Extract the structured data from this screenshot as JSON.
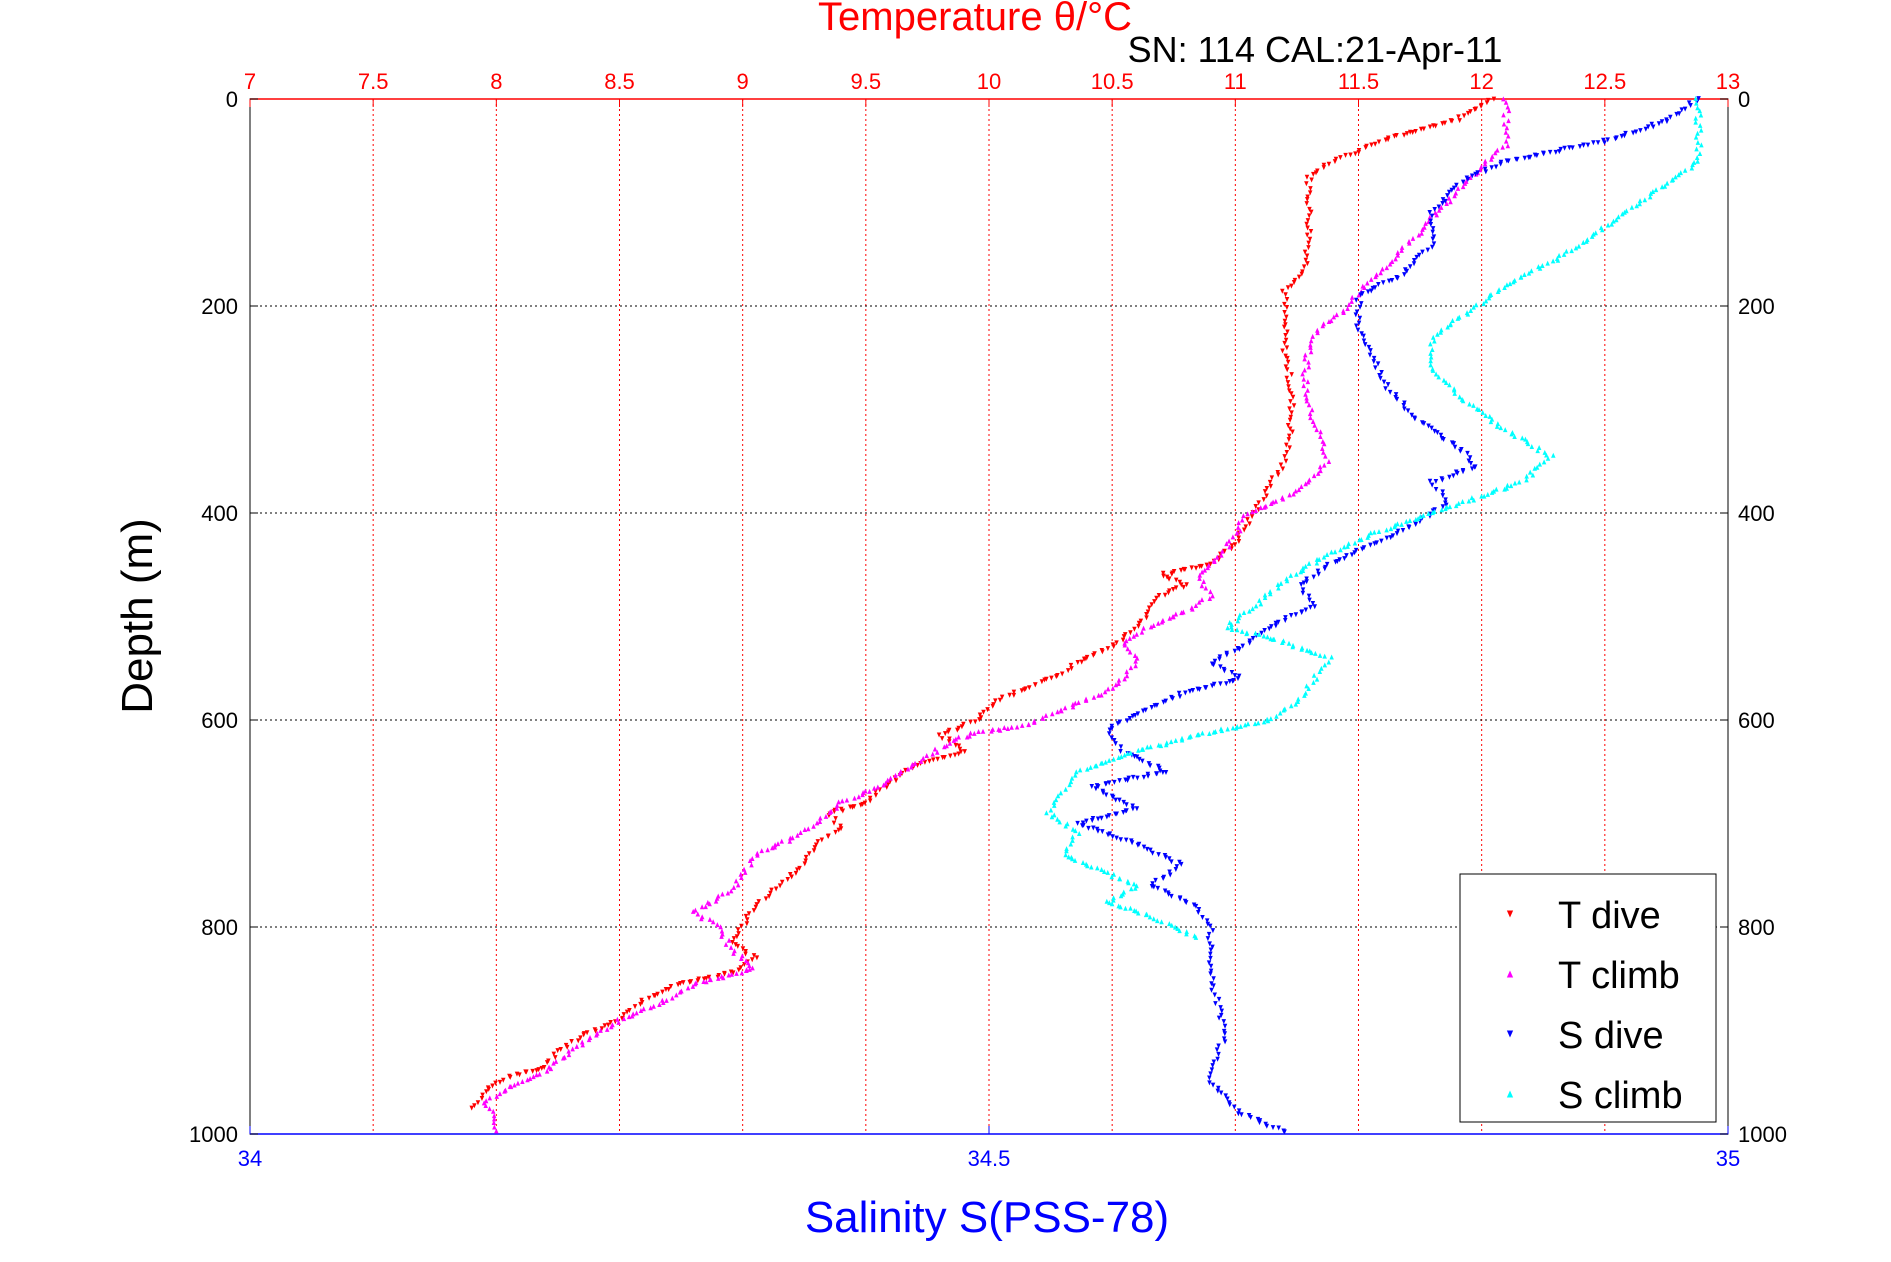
{
  "chart_data": {
    "type": "scatter",
    "title": "Temperature θ/°C",
    "subtitle": "SN: 114  CAL:21-Apr-11",
    "ylabel": "Depth (m)",
    "xlabel": "Salinity S(PSS-78)",
    "ylim": [
      0,
      1000
    ],
    "y_reversed": true,
    "y_ticks": [
      0,
      200,
      400,
      600,
      800,
      1000
    ],
    "y_tick_labels": [
      "0",
      "200",
      "400",
      "600",
      "800",
      "1000"
    ],
    "temperature_axis": {
      "position": "top",
      "range": [
        7,
        13
      ],
      "ticks": [
        7,
        7.5,
        8,
        8.5,
        9,
        9.5,
        10,
        10.5,
        11,
        11.5,
        12,
        12.5,
        13
      ],
      "tick_labels": [
        "7",
        "7.5",
        "8",
        "8.5",
        "9",
        "9.5",
        "10",
        "10.5",
        "11",
        "11.5",
        "12",
        "12.5",
        "13"
      ],
      "color": "#ff0000"
    },
    "salinity_axis": {
      "position": "bottom",
      "range": [
        34,
        35
      ],
      "ticks": [
        34,
        34.5,
        35
      ],
      "tick_labels": [
        "34",
        "34.5",
        "35"
      ],
      "color": "#0000ff"
    },
    "grid": true,
    "legend_position": "bottom-right",
    "series": [
      {
        "name": "T dive",
        "axis": "temperature",
        "color": "#ff0000",
        "marker": "triangle-down",
        "points": [
          [
            12.05,
            0
          ],
          [
            11.9,
            20
          ],
          [
            11.6,
            40
          ],
          [
            11.4,
            60
          ],
          [
            11.3,
            75
          ],
          [
            11.3,
            90
          ],
          [
            11.3,
            110
          ],
          [
            11.3,
            140
          ],
          [
            11.28,
            170
          ],
          [
            11.2,
            185
          ],
          [
            11.2,
            210
          ],
          [
            11.2,
            240
          ],
          [
            11.22,
            270
          ],
          [
            11.23,
            300
          ],
          [
            11.22,
            330
          ],
          [
            11.2,
            350
          ],
          [
            11.15,
            370
          ],
          [
            11.1,
            390
          ],
          [
            11.05,
            410
          ],
          [
            11,
            430
          ],
          [
            10.9,
            450
          ],
          [
            10.7,
            460
          ],
          [
            10.8,
            470
          ],
          [
            10.7,
            480
          ],
          [
            10.65,
            495
          ],
          [
            10.6,
            510
          ],
          [
            10.5,
            530
          ],
          [
            10.35,
            545
          ],
          [
            10.3,
            555
          ],
          [
            10.2,
            565
          ],
          [
            10.05,
            580
          ],
          [
            9.95,
            600
          ],
          [
            9.8,
            615
          ],
          [
            9.9,
            630
          ],
          [
            9.7,
            645
          ],
          [
            9.6,
            660
          ],
          [
            9.5,
            680
          ],
          [
            9.35,
            690
          ],
          [
            9.4,
            705
          ],
          [
            9.3,
            720
          ],
          [
            9.25,
            740
          ],
          [
            9.15,
            760
          ],
          [
            9.05,
            780
          ],
          [
            9.0,
            800
          ],
          [
            8.95,
            815
          ],
          [
            9.05,
            830
          ],
          [
            8.95,
            845
          ],
          [
            8.75,
            855
          ],
          [
            8.6,
            870
          ],
          [
            8.5,
            890
          ],
          [
            8.35,
            905
          ],
          [
            8.25,
            920
          ],
          [
            8.2,
            935
          ],
          [
            8.05,
            945
          ],
          [
            7.95,
            960
          ],
          [
            7.9,
            975
          ]
        ]
      },
      {
        "name": "T climb",
        "axis": "temperature",
        "color": "#ff00ff",
        "marker": "triangle-up",
        "points": [
          [
            12.1,
            0
          ],
          [
            12.1,
            20
          ],
          [
            12.1,
            45
          ],
          [
            12.0,
            65
          ],
          [
            11.9,
            90
          ],
          [
            11.8,
            115
          ],
          [
            11.7,
            140
          ],
          [
            11.6,
            165
          ],
          [
            11.5,
            185
          ],
          [
            11.45,
            205
          ],
          [
            11.35,
            220
          ],
          [
            11.3,
            240
          ],
          [
            11.28,
            270
          ],
          [
            11.3,
            300
          ],
          [
            11.35,
            330
          ],
          [
            11.37,
            350
          ],
          [
            11.3,
            370
          ],
          [
            11.2,
            385
          ],
          [
            11.05,
            400
          ],
          [
            11.0,
            420
          ],
          [
            10.95,
            440
          ],
          [
            10.85,
            460
          ],
          [
            10.9,
            480
          ],
          [
            10.8,
            495
          ],
          [
            10.65,
            510
          ],
          [
            10.55,
            525
          ],
          [
            10.6,
            540
          ],
          [
            10.55,
            560
          ],
          [
            10.45,
            575
          ],
          [
            10.3,
            590
          ],
          [
            10.15,
            605
          ],
          [
            9.95,
            612
          ],
          [
            9.85,
            620
          ],
          [
            9.75,
            635
          ],
          [
            9.65,
            650
          ],
          [
            9.55,
            665
          ],
          [
            9.4,
            680
          ],
          [
            9.3,
            700
          ],
          [
            9.2,
            715
          ],
          [
            9.05,
            730
          ],
          [
            9.0,
            750
          ],
          [
            8.95,
            765
          ],
          [
            8.8,
            785
          ],
          [
            8.9,
            800
          ],
          [
            8.95,
            820
          ],
          [
            9.05,
            840
          ],
          [
            8.8,
            855
          ],
          [
            8.7,
            870
          ],
          [
            8.5,
            890
          ],
          [
            8.4,
            905
          ],
          [
            8.3,
            920
          ],
          [
            8.2,
            940
          ],
          [
            8.05,
            955
          ],
          [
            7.95,
            970
          ],
          [
            8.0,
            985
          ],
          [
            8.0,
            997
          ]
        ]
      },
      {
        "name": "S dive",
        "axis": "salinity",
        "color": "#0000ff",
        "marker": "triangle-down",
        "points": [
          [
            34.98,
            0
          ],
          [
            34.96,
            20
          ],
          [
            34.92,
            40
          ],
          [
            34.85,
            60
          ],
          [
            34.82,
            80
          ],
          [
            34.8,
            110
          ],
          [
            34.8,
            140
          ],
          [
            34.78,
            170
          ],
          [
            34.75,
            190
          ],
          [
            34.75,
            220
          ],
          [
            34.76,
            250
          ],
          [
            34.77,
            280
          ],
          [
            34.79,
            310
          ],
          [
            34.82,
            340
          ],
          [
            34.83,
            355
          ],
          [
            34.8,
            370
          ],
          [
            34.81,
            390
          ],
          [
            34.79,
            410
          ],
          [
            34.76,
            430
          ],
          [
            34.73,
            450
          ],
          [
            34.71,
            470
          ],
          [
            34.72,
            490
          ],
          [
            34.69,
            510
          ],
          [
            34.67,
            530
          ],
          [
            34.65,
            545
          ],
          [
            34.67,
            560
          ],
          [
            34.63,
            575
          ],
          [
            34.6,
            595
          ],
          [
            34.58,
            610
          ],
          [
            34.59,
            630
          ],
          [
            34.62,
            650
          ],
          [
            34.57,
            665
          ],
          [
            34.6,
            685
          ],
          [
            34.56,
            700
          ],
          [
            34.6,
            720
          ],
          [
            34.63,
            740
          ],
          [
            34.61,
            760
          ],
          [
            34.64,
            780
          ],
          [
            34.65,
            800
          ],
          [
            34.65,
            850
          ],
          [
            34.66,
            900
          ],
          [
            34.65,
            950
          ],
          [
            34.67,
            980
          ],
          [
            34.7,
            998
          ]
        ]
      },
      {
        "name": "S climb",
        "axis": "salinity",
        "color": "#00ffff",
        "marker": "triangle-up",
        "points": [
          [
            34.98,
            0
          ],
          [
            34.98,
            30
          ],
          [
            34.98,
            60
          ],
          [
            34.95,
            90
          ],
          [
            34.92,
            120
          ],
          [
            34.89,
            150
          ],
          [
            34.85,
            180
          ],
          [
            34.82,
            210
          ],
          [
            34.8,
            230
          ],
          [
            34.8,
            260
          ],
          [
            34.82,
            290
          ],
          [
            34.85,
            320
          ],
          [
            34.88,
            345
          ],
          [
            34.86,
            370
          ],
          [
            34.8,
            400
          ],
          [
            34.76,
            420
          ],
          [
            34.73,
            440
          ],
          [
            34.7,
            465
          ],
          [
            34.68,
            490
          ],
          [
            34.66,
            510
          ],
          [
            34.7,
            525
          ],
          [
            34.73,
            540
          ],
          [
            34.72,
            560
          ],
          [
            34.71,
            580
          ],
          [
            34.69,
            600
          ],
          [
            34.64,
            615
          ],
          [
            34.6,
            630
          ],
          [
            34.56,
            650
          ],
          [
            34.55,
            670
          ],
          [
            34.54,
            690
          ],
          [
            34.56,
            710
          ],
          [
            34.55,
            730
          ],
          [
            34.6,
            760
          ],
          [
            34.58,
            775
          ],
          [
            34.61,
            790
          ],
          [
            34.64,
            810
          ]
        ]
      }
    ]
  }
}
